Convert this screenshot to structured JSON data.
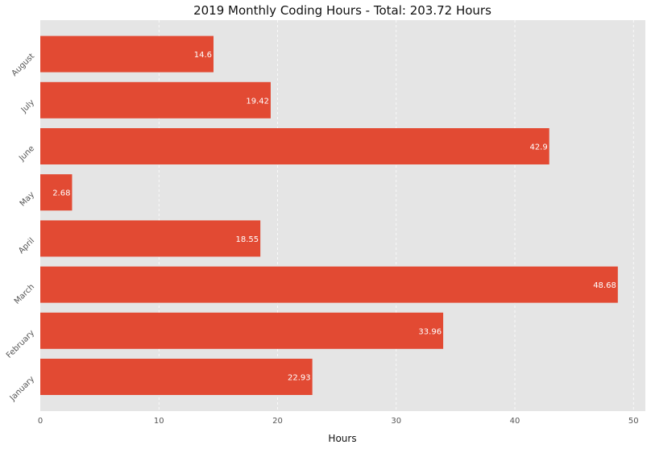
{
  "chart_data": {
    "type": "bar",
    "orientation": "horizontal",
    "title": "2019 Monthly Coding Hours - Total: 203.72 Hours",
    "xlabel": "Hours",
    "ylabel": "",
    "categories": [
      "January",
      "February",
      "March",
      "April",
      "May",
      "June",
      "July",
      "August"
    ],
    "values": [
      22.93,
      33.96,
      48.68,
      18.55,
      2.68,
      42.9,
      19.42,
      14.6
    ],
    "value_labels": [
      "22.93",
      "33.96",
      "48.68",
      "18.55",
      "2.68",
      "42.9",
      "19.42",
      "14.6"
    ],
    "xlim": [
      0,
      51
    ],
    "xticks": [
      0,
      10,
      20,
      30,
      40,
      50
    ],
    "xtick_labels": [
      "0",
      "10",
      "20",
      "30",
      "40",
      "50"
    ],
    "grid": true,
    "colors": {
      "bar": "#E24A33",
      "plot_background": "#E5E5E5",
      "grid": "#FFFFFF"
    }
  }
}
